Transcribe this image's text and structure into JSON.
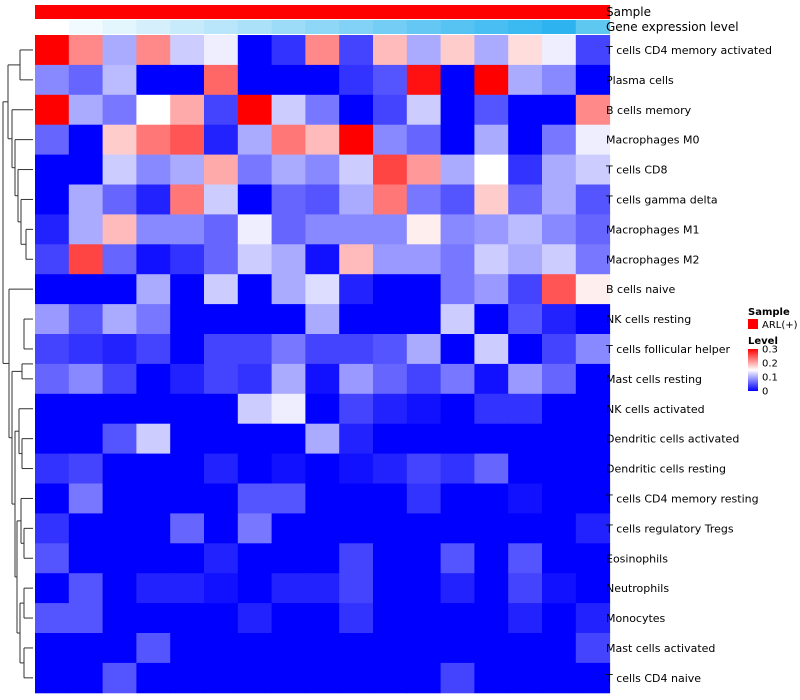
{
  "chart_data": {
    "type": "heatmap",
    "title": "",
    "annotation_rows": [
      "Sample",
      "Gene expression level"
    ],
    "legend_sample": {
      "title": "Sample",
      "entries": [
        {
          "label": "ARL(+)",
          "color": "#ff0000"
        }
      ]
    },
    "legend_level": {
      "title": "Level",
      "ticks": [
        "0.3",
        "0.2",
        "0.1",
        "0"
      ],
      "tick_values": [
        0.3,
        0.2,
        0.1,
        0
      ],
      "colors": {
        "low": "#0000ff",
        "mid": "#ffffff",
        "high": "#ff0000"
      },
      "range": [
        0,
        0.3
      ]
    },
    "sample_colors": [
      "#ff0000",
      "#ff0000",
      "#ff0000",
      "#ff0000",
      "#ff0000",
      "#ff0000",
      "#ff0000",
      "#ff0000",
      "#ff0000",
      "#ff0000",
      "#ff0000",
      "#ff0000",
      "#ff0000",
      "#ff0000",
      "#ff0000",
      "#ff0000",
      "#ff0000"
    ],
    "expression_colors": [
      "#ffffff",
      "#f1fafe",
      "#e3f5fd",
      "#d5f0fc",
      "#c7ebfb",
      "#b9e6fa",
      "#abe1f9",
      "#9ddcf8",
      "#8fd7f7",
      "#81d2f6",
      "#73cdf5",
      "#65c8f4",
      "#57c3f3",
      "#49bef2",
      "#3bb9f1",
      "#2db4f0",
      "#5ec8f0"
    ],
    "rows": [
      "T cells CD4 memory activated",
      "Plasma cells",
      "B cells memory",
      "Macrophages M0",
      "T cells CD8",
      "T cells gamma delta",
      "Macrophages M1",
      "Macrophages M2",
      "B cells naive",
      "NK cells resting",
      "T cells follicular helper",
      "Mast cells resting",
      "NK cells activated",
      "Dendritic cells activated",
      "Dendritic cells resting",
      "T cells CD4 memory resting",
      "T cells regulatory  Tregs",
      "Eosinophils",
      "Neutrophils",
      "Monocytes",
      "Mast cells activated",
      "T cells CD4 naive"
    ],
    "values": [
      [
        0.3,
        0.22,
        0.1,
        0.22,
        0.12,
        0.14,
        0.0,
        0.03,
        0.22,
        0.04,
        0.19,
        0.1,
        0.18,
        0.1,
        0.17,
        0.14,
        0.04
      ],
      [
        0.08,
        0.06,
        0.11,
        0.0,
        0.0,
        0.24,
        0.0,
        0.0,
        0.0,
        0.03,
        0.05,
        0.29,
        0.0,
        0.3,
        0.1,
        0.08,
        0.0
      ],
      [
        0.3,
        0.1,
        0.07,
        0.15,
        0.2,
        0.04,
        0.3,
        0.12,
        0.07,
        0.0,
        0.04,
        0.12,
        0.0,
        0.05,
        0.0,
        0.0,
        0.22
      ],
      [
        0.06,
        0.0,
        0.18,
        0.23,
        0.25,
        0.02,
        0.1,
        0.23,
        0.19,
        0.3,
        0.08,
        0.06,
        0.0,
        0.1,
        0.0,
        0.07,
        0.14
      ],
      [
        0.0,
        0.0,
        0.12,
        0.08,
        0.1,
        0.2,
        0.07,
        0.1,
        0.08,
        0.12,
        0.26,
        0.21,
        0.1,
        0.15,
        0.03,
        0.1,
        0.12
      ],
      [
        0.0,
        0.1,
        0.06,
        0.02,
        0.23,
        0.12,
        0.0,
        0.06,
        0.05,
        0.1,
        0.23,
        0.07,
        0.05,
        0.18,
        0.06,
        0.1,
        0.05
      ],
      [
        0.02,
        0.1,
        0.19,
        0.08,
        0.08,
        0.06,
        0.14,
        0.06,
        0.08,
        0.08,
        0.08,
        0.16,
        0.08,
        0.09,
        0.11,
        0.08,
        0.06
      ],
      [
        0.04,
        0.26,
        0.06,
        0.01,
        0.03,
        0.06,
        0.12,
        0.1,
        0.01,
        0.19,
        0.09,
        0.09,
        0.07,
        0.12,
        0.1,
        0.12,
        0.07
      ],
      [
        0.0,
        0.0,
        0.0,
        0.1,
        0.0,
        0.12,
        0.0,
        0.1,
        0.13,
        0.02,
        0.0,
        0.0,
        0.07,
        0.09,
        0.04,
        0.25,
        0.16
      ],
      [
        0.09,
        0.05,
        0.1,
        0.07,
        0.0,
        0.0,
        0.0,
        0.0,
        0.1,
        0.0,
        0.0,
        0.0,
        0.12,
        0.0,
        0.05,
        0.02,
        0.0
      ],
      [
        0.04,
        0.03,
        0.02,
        0.04,
        0.0,
        0.04,
        0.04,
        0.07,
        0.04,
        0.04,
        0.05,
        0.1,
        0.0,
        0.12,
        0.0,
        0.04,
        0.08
      ],
      [
        0.06,
        0.08,
        0.04,
        0.0,
        0.02,
        0.04,
        0.03,
        0.1,
        0.01,
        0.09,
        0.06,
        0.04,
        0.07,
        0.01,
        0.09,
        0.06,
        0.0
      ],
      [
        0.0,
        0.0,
        0.0,
        0.0,
        0.0,
        0.0,
        0.12,
        0.14,
        0.0,
        0.04,
        0.02,
        0.01,
        0.0,
        0.03,
        0.03,
        0.0,
        0.0
      ],
      [
        0.0,
        0.0,
        0.05,
        0.12,
        0.0,
        0.0,
        0.0,
        0.0,
        0.1,
        0.02,
        0.0,
        0.0,
        0.0,
        0.0,
        0.0,
        0.0,
        0.0
      ],
      [
        0.03,
        0.04,
        0.0,
        0.0,
        0.0,
        0.02,
        0.0,
        0.01,
        0.0,
        0.01,
        0.02,
        0.04,
        0.03,
        0.06,
        0.0,
        0.0,
        0.0
      ],
      [
        0.0,
        0.07,
        0.0,
        0.0,
        0.0,
        0.0,
        0.05,
        0.05,
        0.0,
        0.0,
        0.0,
        0.03,
        0.0,
        0.0,
        0.01,
        0.0,
        0.0
      ],
      [
        0.03,
        0.0,
        0.0,
        0.0,
        0.06,
        0.0,
        0.07,
        0.0,
        0.0,
        0.0,
        0.0,
        0.0,
        0.0,
        0.0,
        0.0,
        0.0,
        0.02
      ],
      [
        0.05,
        0.0,
        0.0,
        0.0,
        0.0,
        0.02,
        0.0,
        0.0,
        0.0,
        0.04,
        0.0,
        0.0,
        0.05,
        0.0,
        0.05,
        0.0,
        0.0
      ],
      [
        0.0,
        0.05,
        0.0,
        0.02,
        0.02,
        0.01,
        0.0,
        0.02,
        0.02,
        0.04,
        0.0,
        0.0,
        0.02,
        0.0,
        0.04,
        0.01,
        0.0
      ],
      [
        0.05,
        0.05,
        0.0,
        0.0,
        0.0,
        0.0,
        0.02,
        0.0,
        0.0,
        0.03,
        0.0,
        0.0,
        0.0,
        0.0,
        0.02,
        0.0,
        0.02
      ],
      [
        0.0,
        0.0,
        0.0,
        0.05,
        0.0,
        0.0,
        0.0,
        0.0,
        0.0,
        0.0,
        0.0,
        0.0,
        0.0,
        0.0,
        0.0,
        0.0,
        0.04
      ],
      [
        0.0,
        0.0,
        0.05,
        0.0,
        0.0,
        0.0,
        0.0,
        0.0,
        0.0,
        0.0,
        0.0,
        0.0,
        0.04,
        0.0,
        0.0,
        0.0,
        0.0
      ]
    ]
  }
}
